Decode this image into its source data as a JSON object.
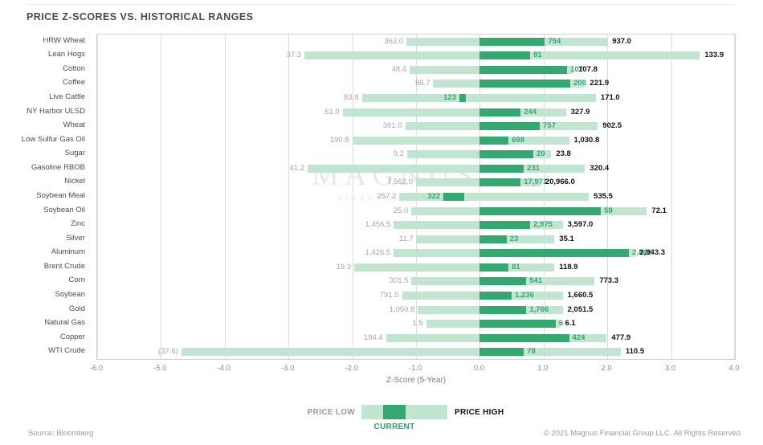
{
  "title": "PRICE Z-SCORES VS. HISTORICAL RANGES",
  "source": "Source: Bloomberg",
  "copyright": "© 2021 Magnus Financial Group LLC. All Rights Reserved",
  "watermark": {
    "line1": "MAGNUS",
    "line2": "FINANCIAL GROUP"
  },
  "legend": {
    "price_low": "PRICE LOW",
    "price_high": "PRICE HIGH",
    "current": "CURRENT"
  },
  "colors": {
    "range_bar": "#c2e5d1",
    "current_bar": "#35a871",
    "low_label": "#a4a4a4",
    "current_label": "#35a871",
    "high_label": "#111111"
  },
  "chart_data": {
    "type": "bar",
    "title": "PRICE Z-SCORES VS. HISTORICAL RANGES",
    "xlabel": "Z-Score (5-Year)",
    "xlim": [
      -6.0,
      4.0
    ],
    "xtick_labels": [
      "-6.0",
      "-5.0",
      "-4.0",
      "-3.0",
      "-2.0",
      "-1.0",
      "0.0",
      "1.0",
      "2.0",
      "3.0",
      "4.0"
    ],
    "legend_position": "bottom",
    "grid": "vertical",
    "rows": [
      {
        "name": "HRW Wheat",
        "low_label": "362.0",
        "current_label": "754",
        "high_label": "937.0",
        "low_z": -1.15,
        "high_z": 2.0,
        "current_start_z": 0,
        "current_z": 1.02
      },
      {
        "name": "Lean Hogs",
        "low_label": "37.3",
        "current_label": "91",
        "high_label": "133.9",
        "low_z": -2.75,
        "high_z": 3.45,
        "current_start_z": 0,
        "current_z": 0.79
      },
      {
        "name": "Cotton",
        "low_label": "48.4",
        "current_label": "107",
        "high_label": "107.8",
        "low_z": -1.1,
        "high_z": 1.47,
        "current_start_z": 0,
        "current_z": 1.37
      },
      {
        "name": "Coffee",
        "low_label": "86.7",
        "current_label": "200",
        "high_label": "221.9",
        "low_z": -0.73,
        "high_z": 1.65,
        "current_start_z": 0,
        "current_z": 1.42
      },
      {
        "name": "Live Cattle",
        "low_label": "83.8",
        "current_label": "123",
        "high_label": "171.0",
        "low_z": -1.85,
        "high_z": 1.82,
        "current_start_z": -0.32,
        "current_z": -0.22
      },
      {
        "name": "NY Harbor ULSD",
        "low_label": "61.0",
        "current_label": "244",
        "high_label": "327.9",
        "low_z": -2.15,
        "high_z": 1.35,
        "current_start_z": 0,
        "current_z": 0.64
      },
      {
        "name": "Wheat",
        "low_label": "361.0",
        "current_label": "757",
        "high_label": "902.5",
        "low_z": -1.17,
        "high_z": 1.85,
        "current_start_z": 0,
        "current_z": 0.94
      },
      {
        "name": "Low Sulfur Gas Oil",
        "low_label": "190.8",
        "current_label": "698",
        "high_label": "1,030.8",
        "low_z": -2.0,
        "high_z": 1.4,
        "current_start_z": 0,
        "current_z": 0.45
      },
      {
        "name": "Sugar",
        "low_label": "9.2",
        "current_label": "20",
        "high_label": "23.8",
        "low_z": -1.14,
        "high_z": 1.12,
        "current_start_z": 0,
        "current_z": 0.84
      },
      {
        "name": "Gasoline RBOB",
        "low_label": "41.2",
        "current_label": "231",
        "high_label": "320.4",
        "low_z": -2.7,
        "high_z": 1.65,
        "current_start_z": 0,
        "current_z": 0.69
      },
      {
        "name": "Nickel",
        "low_label": "7,562.0",
        "current_label": "17,971",
        "high_label": "20,966.0",
        "low_z": -1.0,
        "high_z": 0.95,
        "current_start_z": 0,
        "current_z": 0.64
      },
      {
        "name": "Soybean Meal",
        "low_label": "257.2",
        "current_label": "322",
        "high_label": "535.5",
        "low_z": -1.26,
        "high_z": 1.71,
        "current_start_z": -0.57,
        "current_z": -0.24
      },
      {
        "name": "Soybean Oil",
        "low_label": "25.0",
        "current_label": "59",
        "high_label": "72.1",
        "low_z": -1.07,
        "high_z": 2.62,
        "current_start_z": 0,
        "current_z": 1.9
      },
      {
        "name": "Zinc",
        "low_label": "1,456.5",
        "current_label": "2,975",
        "high_label": "3,597.0",
        "low_z": -1.35,
        "high_z": 1.3,
        "current_start_z": 0,
        "current_z": 0.79
      },
      {
        "name": "Silver",
        "low_label": "11.7",
        "current_label": "23",
        "high_label": "35.1",
        "low_z": -0.99,
        "high_z": 1.17,
        "current_start_z": 0,
        "current_z": 0.42
      },
      {
        "name": "Aluminum",
        "low_label": "1,426.5",
        "current_label": "2,842",
        "high_label": "2,943.3",
        "low_z": -1.35,
        "high_z": 2.43,
        "current_start_z": 0,
        "current_z": 2.34
      },
      {
        "name": "Brent Crude",
        "low_label": "19.3",
        "current_label": "81",
        "high_label": "118.9",
        "low_z": -1.97,
        "high_z": 1.17,
        "current_start_z": 0,
        "current_z": 0.45
      },
      {
        "name": "Corn",
        "low_label": "301.5",
        "current_label": "541",
        "high_label": "773.3",
        "low_z": -1.07,
        "high_z": 1.8,
        "current_start_z": 0,
        "current_z": 0.73
      },
      {
        "name": "Soybean",
        "low_label": "791.0",
        "current_label": "1,236",
        "high_label": "1,660.5",
        "low_z": -1.22,
        "high_z": 1.3,
        "current_start_z": 0,
        "current_z": 0.5
      },
      {
        "name": "Gold",
        "low_label": "1,050.8",
        "current_label": "1,766",
        "high_label": "2,051.5",
        "low_z": -0.97,
        "high_z": 1.3,
        "current_start_z": 0,
        "current_z": 0.73
      },
      {
        "name": "Natural Gas",
        "low_label": "1.5",
        "current_label": "6",
        "high_label": "6.1",
        "low_z": -0.84,
        "high_z": 1.26,
        "current_start_z": 0,
        "current_z": 1.19
      },
      {
        "name": "Copper",
        "low_label": "194.4",
        "current_label": "424",
        "high_label": "477.9",
        "low_z": -1.47,
        "high_z": 1.99,
        "current_start_z": 0,
        "current_z": 1.4
      },
      {
        "name": "WTI Crude",
        "low_label": "(37.6)",
        "current_label": "78",
        "high_label": "110.5",
        "low_z": -4.68,
        "high_z": 2.21,
        "current_start_z": 0,
        "current_z": 0.69
      }
    ]
  }
}
